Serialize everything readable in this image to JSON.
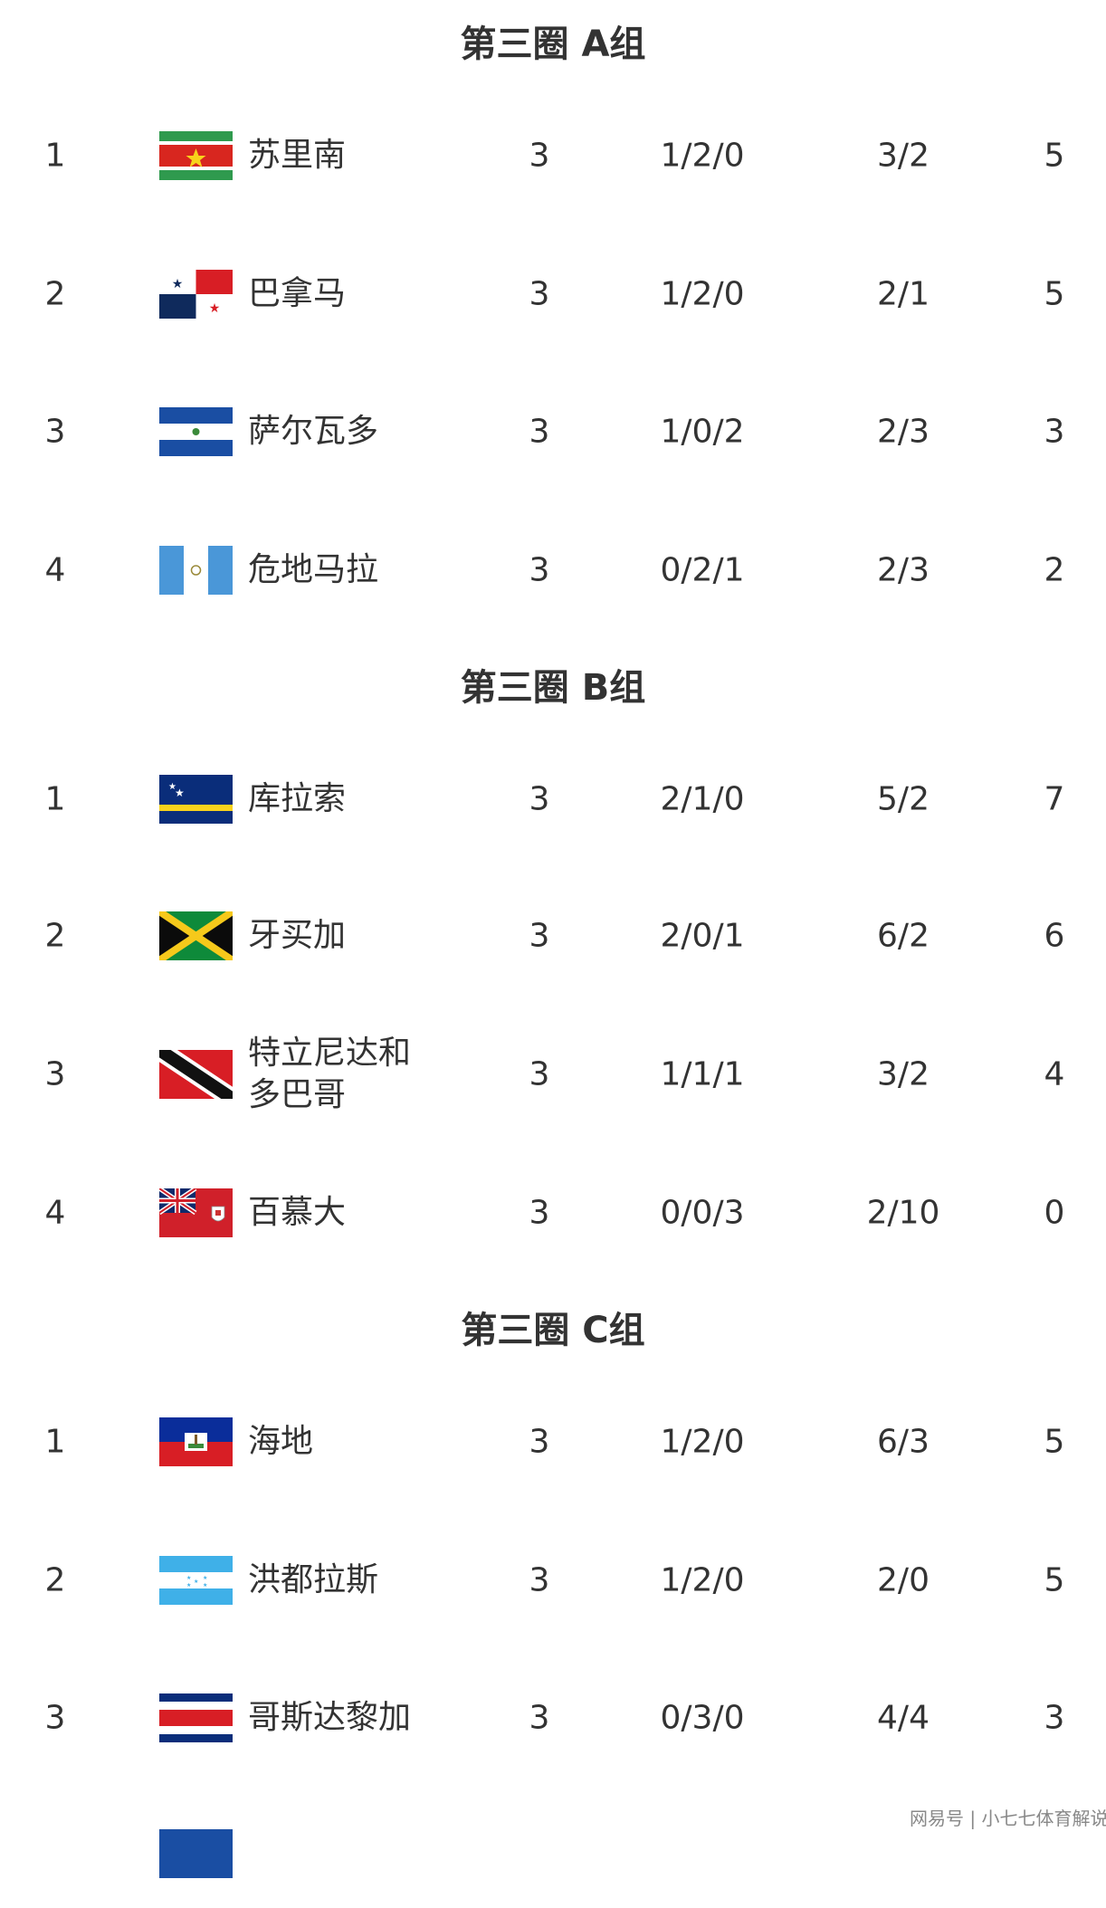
{
  "groups": [
    {
      "title": "第三圈 A组",
      "rows": [
        {
          "rank": "1",
          "flag": "suriname",
          "name": "苏里南",
          "played": "3",
          "wdl": "1/2/0",
          "goals": "3/2",
          "points": "5"
        },
        {
          "rank": "2",
          "flag": "panama",
          "name": "巴拿马",
          "played": "3",
          "wdl": "1/2/0",
          "goals": "2/1",
          "points": "5"
        },
        {
          "rank": "3",
          "flag": "el-salvador",
          "name": "萨尔瓦多",
          "played": "3",
          "wdl": "1/0/2",
          "goals": "2/3",
          "points": "3"
        },
        {
          "rank": "4",
          "flag": "guatemala",
          "name": "危地马拉",
          "played": "3",
          "wdl": "0/2/1",
          "goals": "2/3",
          "points": "2"
        }
      ]
    },
    {
      "title": "第三圈 B组",
      "rows": [
        {
          "rank": "1",
          "flag": "curacao",
          "name": "库拉索",
          "played": "3",
          "wdl": "2/1/0",
          "goals": "5/2",
          "points": "7"
        },
        {
          "rank": "2",
          "flag": "jamaica",
          "name": "牙买加",
          "played": "3",
          "wdl": "2/0/1",
          "goals": "6/2",
          "points": "6"
        },
        {
          "rank": "3",
          "flag": "trinidad-and-tobago",
          "name": "特立尼达和多巴哥",
          "played": "3",
          "wdl": "1/1/1",
          "goals": "3/2",
          "points": "4"
        },
        {
          "rank": "4",
          "flag": "bermuda",
          "name": "百慕大",
          "played": "3",
          "wdl": "0/0/3",
          "goals": "2/10",
          "points": "0"
        }
      ]
    },
    {
      "title": "第三圈 C组",
      "rows": [
        {
          "rank": "1",
          "flag": "haiti",
          "name": "海地",
          "played": "3",
          "wdl": "1/2/0",
          "goals": "6/3",
          "points": "5"
        },
        {
          "rank": "2",
          "flag": "honduras",
          "name": "洪都拉斯",
          "played": "3",
          "wdl": "1/2/0",
          "goals": "2/0",
          "points": "5"
        },
        {
          "rank": "3",
          "flag": "costa-rica",
          "name": "哥斯达黎加",
          "played": "3",
          "wdl": "0/3/0",
          "goals": "4/4",
          "points": "3"
        },
        {
          "flag": "blue-partial"
        }
      ]
    }
  ],
  "watermark": "网易号 | 小七七体育解说"
}
